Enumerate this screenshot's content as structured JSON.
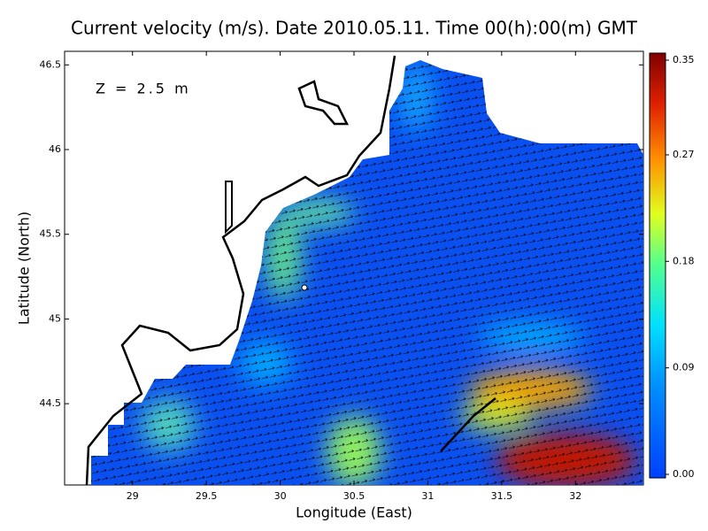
{
  "chart_data": {
    "type": "map",
    "title": "Current velocity (m/s). Date 2010.05.11. Time 00(h):00(m) GMT",
    "annotation": "Z = 2.5 m",
    "x_label": "Longitude (East)",
    "y_label": "Latitude (North)",
    "xlim": [
      28.54,
      32.46
    ],
    "xticks": [
      29,
      29.5,
      30,
      30.5,
      31,
      31.5,
      32
    ],
    "ylim": [
      44.02,
      46.58
    ],
    "yticks": [
      44.5,
      45,
      45.5,
      46,
      46.5
    ],
    "colorbar": {
      "lim": [
        0,
        0.35
      ],
      "ticks": [
        {
          "value": 0,
          "label": "0.00"
        },
        0.09,
        0.18,
        0.27,
        0.35
      ]
    }
  }
}
